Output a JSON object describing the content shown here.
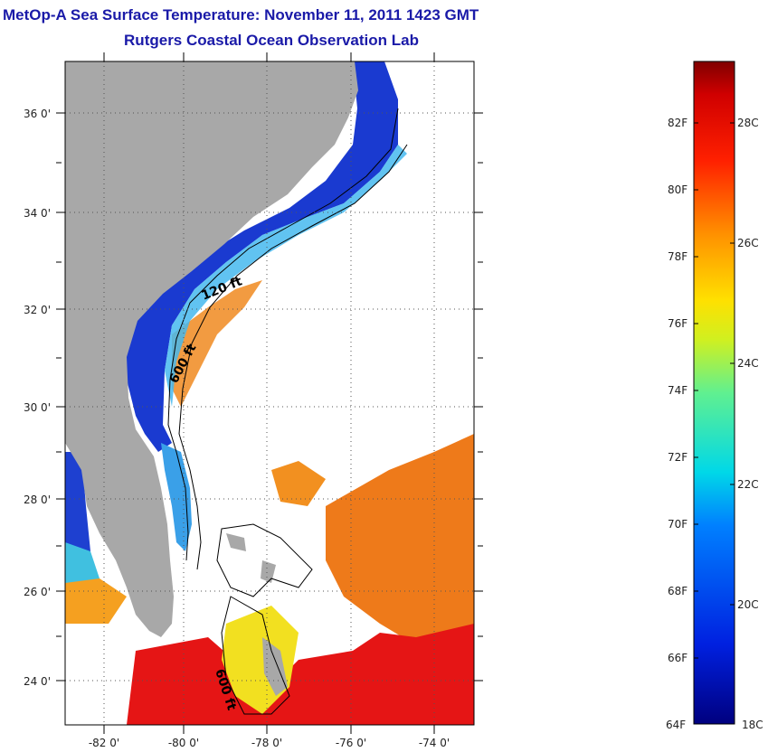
{
  "header": {
    "title": "MetOp-A Sea Surface Temperature:  November 11, 2011 1423 GMT",
    "subtitle": "Rutgers Coastal Ocean Observation Lab"
  },
  "map": {
    "lat_labels": [
      "36 0'",
      "34 0'",
      "32 0'",
      "30 0'",
      "28 0'",
      "26 0'",
      "24 0'"
    ],
    "lon_labels": [
      "-82 0'",
      "-80 0'",
      "-78 0'",
      "-76 0'",
      "-74 0'"
    ],
    "contour_labels": {
      "c120": "120 ft",
      "c600a": "600 ft",
      "c600b": "600 ft"
    },
    "colors": {
      "land": "#a8a8a8",
      "cold": "#1030c0",
      "warm": "#f08020",
      "hot": "#e01010"
    }
  },
  "colorbar": {
    "f_labels": [
      "82F",
      "80F",
      "78F",
      "76F",
      "74F",
      "72F",
      "70F",
      "68F",
      "66F",
      "64F"
    ],
    "c_labels": [
      "28C",
      "26C",
      "24C",
      "22C",
      "20C",
      "18C"
    ]
  }
}
